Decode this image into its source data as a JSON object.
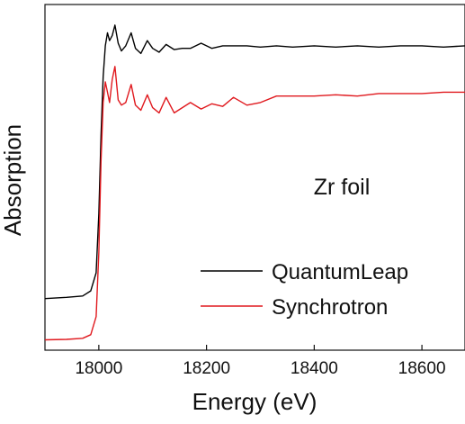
{
  "chart_data": {
    "type": "line",
    "xlabel": "Energy (eV)",
    "ylabel": "Absorption",
    "xlim": [
      17900,
      18680
    ],
    "ylim": [
      -0.08,
      1.26
    ],
    "xticks": [
      18000,
      18200,
      18400,
      18600
    ],
    "y_tick_labels_shown": false,
    "grid": false,
    "legend_position": "bottom-right",
    "annotation": "Zr foil",
    "series": [
      {
        "name": "QuantumLeap",
        "color": "#000000",
        "x": [
          17900,
          17940,
          17970,
          17985,
          17995,
          18000,
          18004,
          18008,
          18012,
          18016,
          18020,
          18025,
          18030,
          18036,
          18042,
          18050,
          18060,
          18068,
          18078,
          18090,
          18100,
          18112,
          18125,
          18140,
          18155,
          18170,
          18190,
          18210,
          18230,
          18250,
          18275,
          18300,
          18330,
          18360,
          18400,
          18440,
          18480,
          18520,
          18560,
          18600,
          18640,
          18680
        ],
        "y": [
          0.12,
          0.125,
          0.13,
          0.15,
          0.22,
          0.45,
          0.75,
          0.98,
          1.1,
          1.15,
          1.12,
          1.14,
          1.18,
          1.11,
          1.08,
          1.1,
          1.15,
          1.09,
          1.07,
          1.12,
          1.09,
          1.075,
          1.105,
          1.085,
          1.09,
          1.09,
          1.11,
          1.09,
          1.1,
          1.1,
          1.1,
          1.095,
          1.1,
          1.095,
          1.1,
          1.095,
          1.1,
          1.095,
          1.1,
          1.1,
          1.095,
          1.1
        ]
      },
      {
        "name": "Synchrotron",
        "color": "#e0191e",
        "x": [
          17900,
          17940,
          17970,
          17985,
          17995,
          18000,
          18004,
          18008,
          18012,
          18016,
          18020,
          18025,
          18030,
          18036,
          18042,
          18050,
          18060,
          18068,
          18078,
          18090,
          18100,
          18112,
          18125,
          18140,
          18155,
          18170,
          18190,
          18210,
          18230,
          18250,
          18275,
          18300,
          18330,
          18360,
          18400,
          18440,
          18480,
          18520,
          18560,
          18600,
          18640,
          18680
        ],
        "y": [
          -0.04,
          -0.038,
          -0.034,
          -0.02,
          0.05,
          0.3,
          0.65,
          0.88,
          0.96,
          0.92,
          0.88,
          0.97,
          1.02,
          0.89,
          0.87,
          0.88,
          0.95,
          0.87,
          0.85,
          0.91,
          0.86,
          0.84,
          0.9,
          0.84,
          0.86,
          0.88,
          0.855,
          0.875,
          0.865,
          0.9,
          0.87,
          0.88,
          0.905,
          0.905,
          0.905,
          0.91,
          0.905,
          0.915,
          0.915,
          0.915,
          0.92,
          0.92
        ]
      }
    ]
  }
}
